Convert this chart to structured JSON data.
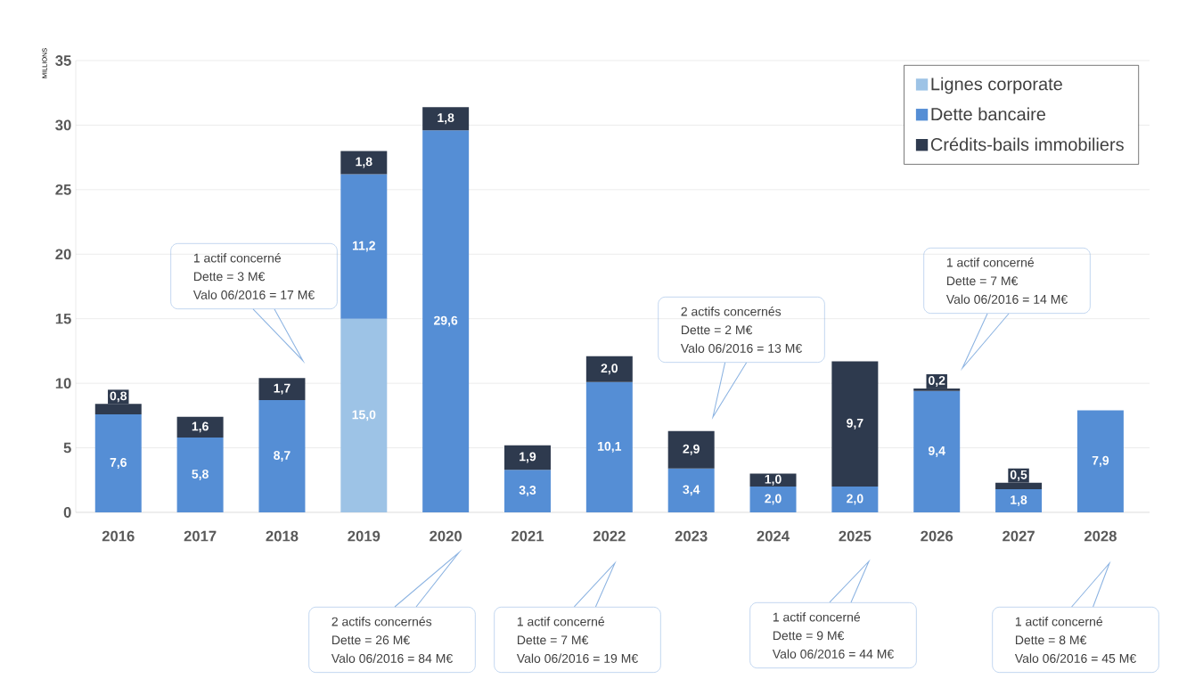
{
  "chart_data": {
    "type": "bar",
    "stacked": true,
    "ylabel": "MILLIONS",
    "categories": [
      "2016",
      "2017",
      "2018",
      "2019",
      "2020",
      "2021",
      "2022",
      "2023",
      "2024",
      "2025",
      "2026",
      "2027",
      "2028"
    ],
    "series": [
      {
        "name": "Lignes corporate",
        "color": "#9dc3e6",
        "values": [
          null,
          null,
          null,
          15.0,
          null,
          null,
          null,
          null,
          null,
          null,
          null,
          null,
          null
        ],
        "value_labels": [
          null,
          null,
          null,
          "15,0",
          null,
          null,
          null,
          null,
          null,
          null,
          null,
          null,
          null
        ]
      },
      {
        "name": "Dette bancaire",
        "color": "#558ed5",
        "values": [
          7.6,
          5.8,
          8.7,
          11.2,
          29.6,
          3.3,
          10.1,
          3.4,
          2.0,
          2.0,
          9.4,
          1.8,
          7.9
        ],
        "value_labels": [
          "7,6",
          "5,8",
          "8,7",
          "11,2",
          "29,6",
          "3,3",
          "10,1",
          "3,4",
          "2,0",
          "2,0",
          "9,4",
          "1,8",
          "7,9"
        ]
      },
      {
        "name": "Crédits-bails immobiliers",
        "color": "#2e3a4e",
        "values": [
          0.8,
          1.6,
          1.7,
          1.8,
          1.8,
          1.9,
          2.0,
          2.9,
          1.0,
          9.7,
          0.2,
          0.5,
          null
        ],
        "value_labels": [
          "0,8",
          "1,6",
          "1,7",
          "1,8",
          "1,8",
          "1,9",
          "2,0",
          "2,9",
          "1,0",
          "9,7",
          "0,2",
          "0,5",
          null
        ]
      }
    ],
    "ylim": [
      0,
      35
    ],
    "yticks": [
      0,
      5,
      10,
      15,
      20,
      25,
      30,
      35
    ],
    "grid": "y",
    "legend": "top right",
    "annotations": [
      "1 actif concerné",
      "Dette = 3 M€",
      "Valo 06/2016 = 17 M€",
      "2 actifs concernés",
      "Dette = 26 M€",
      "Valo 06/2016 = 84 M€",
      "1 actif concerné",
      "Dette = 7 M€",
      "Valo 06/2016 = 19 M€",
      "2 actifs concernés",
      "Dette = 2 M€",
      "Valo 06/2016 = 13 M€",
      "1 actif concerné",
      "Dette = 9 M€",
      "Valo 06/2016 = 44 M€",
      "1 actif concerné",
      "Dette = 7 M€",
      "Valo 06/2016 = 14 M€",
      "1 actif concerné",
      "Dette = 8 M€",
      "Valo 06/2016 = 45 M€"
    ]
  }
}
